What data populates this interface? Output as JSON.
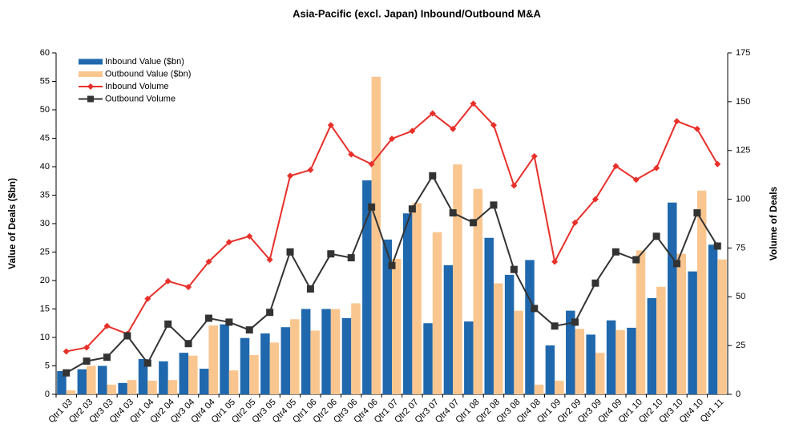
{
  "chart_data": {
    "type": "bar",
    "title": "Asia-Pacific (excl. Japan) Inbound/Outbound M&A",
    "y_label": "Value of Deals ($bn)",
    "y2_label": "Volume of Deals",
    "categories": [
      "Qtr1 03",
      "Qtr2 03",
      "Qtr3 03",
      "Qtr4 03",
      "Qtr1 04",
      "Qtr2 04",
      "Qtr3 04",
      "Qtr4 04",
      "Qtr1 05",
      "Qtr2 05",
      "Qtr3 05",
      "Qtr4 05",
      "Qtr1 06",
      "Qtr2 06",
      "Qtr3 06",
      "Qtr4 06",
      "Qtr1 07",
      "Qtr2 07",
      "Qtr3 07",
      "Qtr4 07",
      "Qtr1 08",
      "Qtr2 08",
      "Qtr3 08",
      "Qtr4 08",
      "Qtr1 09",
      "Qtr2 09",
      "Qtr3 09",
      "Qtr4 09",
      "Qtr1 10",
      "Qtr2 10",
      "Qtr3 10",
      "Qtr4 10",
      "Qtr1 11"
    ],
    "series": [
      {
        "name": "Inbound Value ($bn)",
        "type": "bar",
        "color": "#1f68ad",
        "values": [
          4.1,
          4.4,
          5.0,
          2.0,
          6.2,
          5.8,
          7.3,
          4.5,
          12.3,
          9.9,
          10.7,
          11.8,
          15.0,
          15.0,
          13.4,
          37.6,
          27.2,
          31.8,
          12.5,
          22.7,
          12.8,
          27.5,
          21.0,
          23.6,
          8.6,
          14.7,
          10.5,
          13.0,
          11.7,
          16.9,
          33.7,
          21.6,
          26.3
        ]
      },
      {
        "name": "Outbound Value ($bn)",
        "type": "bar",
        "color": "#fac690",
        "values": [
          0.7,
          5.0,
          1.7,
          2.5,
          2.4,
          2.5,
          6.8,
          12.1,
          4.2,
          6.9,
          9.1,
          13.2,
          11.2,
          15.0,
          16.0,
          55.8,
          23.8,
          33.6,
          28.5,
          40.4,
          36.1,
          19.5,
          14.7,
          1.7,
          2.4,
          11.5,
          7.3,
          11.3,
          25.3,
          18.9,
          24.7,
          35.8,
          23.7
        ]
      },
      {
        "name": "Inbound Volume",
        "type": "line",
        "axis": "y2",
        "color": "#e8302a",
        "marker": "diamond",
        "values": [
          22,
          24,
          35,
          31,
          49,
          58,
          55,
          68,
          78,
          81,
          69,
          112,
          115,
          138,
          123,
          118,
          131,
          135,
          144,
          136,
          149,
          138,
          107,
          122,
          68,
          88,
          100,
          117,
          110,
          116,
          140,
          136,
          118
        ]
      },
      {
        "name": "Outbound Volume",
        "type": "line",
        "axis": "y2",
        "color": "#333333",
        "marker": "square",
        "values": [
          11,
          17,
          19,
          30,
          16,
          36,
          26,
          39,
          37,
          33,
          42,
          73,
          54,
          72,
          70,
          96,
          66,
          95,
          112,
          93,
          88,
          97,
          64,
          44,
          35,
          37,
          57,
          73,
          69,
          81,
          67,
          93,
          76
        ]
      }
    ],
    "ylim": [
      0,
      60
    ],
    "yticks": [
      0,
      5,
      10,
      15,
      20,
      25,
      30,
      35,
      40,
      45,
      50,
      55,
      60
    ],
    "y2lim": [
      0,
      175
    ],
    "y2ticks": [
      0,
      25,
      50,
      75,
      100,
      125,
      150,
      175
    ],
    "legend": "upper-left"
  }
}
